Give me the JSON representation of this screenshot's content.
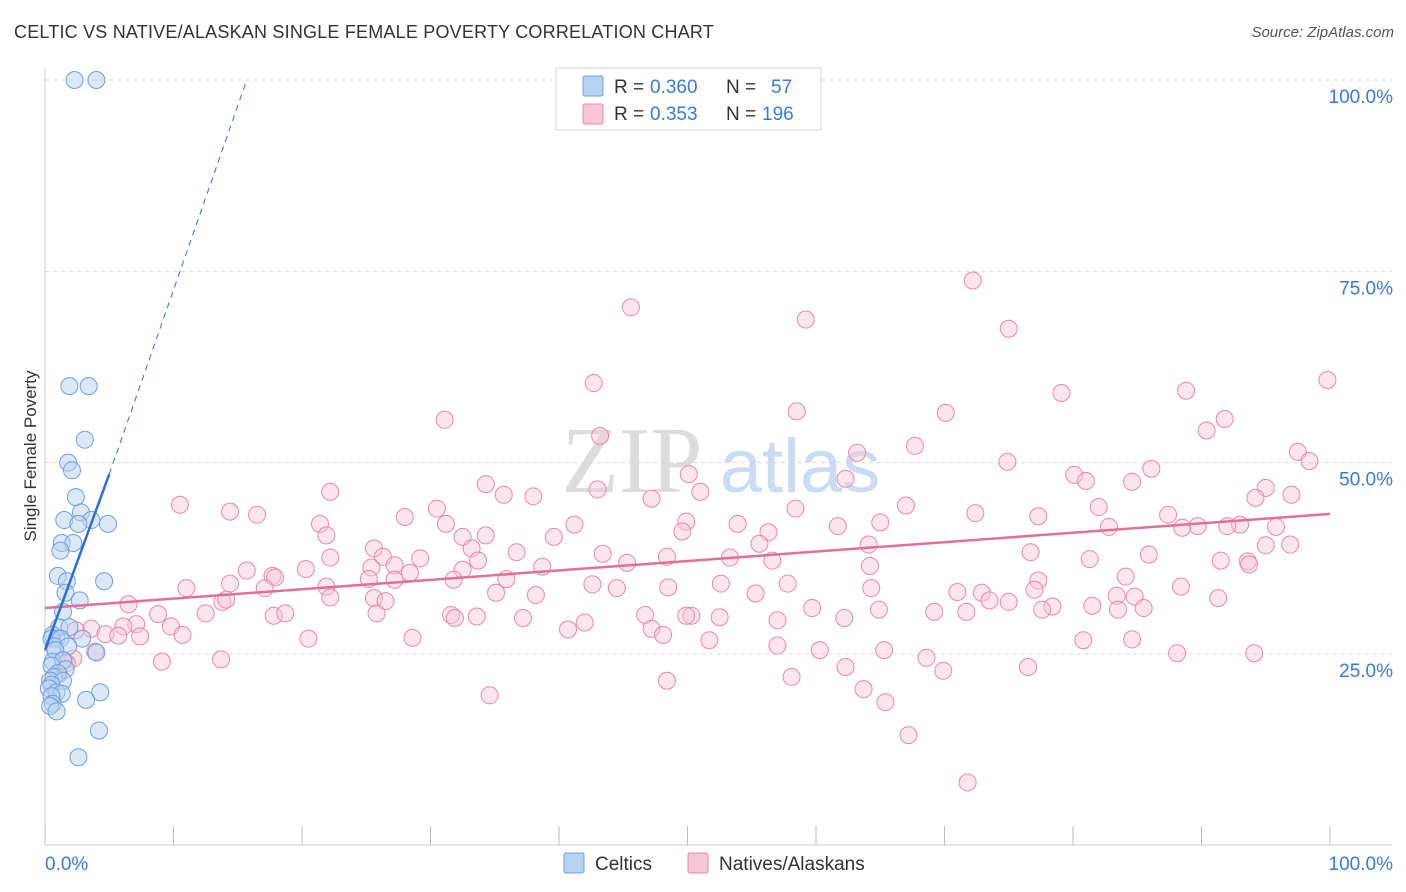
{
  "title": "CELTIC VS NATIVE/ALASKAN SINGLE FEMALE POVERTY CORRELATION CHART",
  "source": "Source: ZipAtlas.com",
  "watermark": {
    "zip": "ZIP",
    "atlas": "atlas"
  },
  "legend": {
    "rows": [
      {
        "r_label": "R =",
        "r_value": "0.360",
        "n_label": "N =",
        "n_value": "57",
        "color": "#a8c8f0"
      },
      {
        "r_label": "R =",
        "r_value": "0.353",
        "n_label": "N =",
        "n_value": "196",
        "color": "#f6b8cc"
      }
    ]
  },
  "bottom_legend": [
    "Celtics",
    "Natives/Alaskans"
  ],
  "colors": {
    "blue_fill": "#b8d2f2",
    "blue_stroke": "#6fa0dc",
    "blue_line": "#2f6fd4",
    "pink_fill": "#f8c6d6",
    "pink_stroke": "#e88aa8",
    "pink_line": "#e0709a",
    "value_text": "#3a7bd5",
    "grid": "#d8d8d8"
  },
  "chart_data": {
    "type": "scatter",
    "title": "CELTIC VS NATIVE/ALASKAN SINGLE FEMALE POVERTY CORRELATION CHART",
    "ylabel": "Single Female Poverty",
    "xlabel": "",
    "xlim": [
      0,
      100
    ],
    "ylim": [
      0,
      102
    ],
    "x_tick_labels": [
      "0.0%",
      "100.0%"
    ],
    "y_tick_labels": [
      {
        "value": 25,
        "label": "25.0%"
      },
      {
        "value": 50,
        "label": "50.0%"
      },
      {
        "value": 75,
        "label": "75.0%"
      },
      {
        "value": 100,
        "label": "100.0%"
      }
    ],
    "series": [
      {
        "name": "Celtics",
        "r": 0.36,
        "n": 57,
        "trend": {
          "x0": 0,
          "y0": 25.5,
          "x1": 5,
          "y1": 48.5,
          "dash_to_x": 15.7,
          "dash_to_y": 100
        },
        "points": [
          [
            2.3,
            100
          ],
          [
            4.0,
            100
          ],
          [
            1.9,
            60
          ],
          [
            3.4,
            60
          ],
          [
            3.1,
            53
          ],
          [
            1.8,
            50
          ],
          [
            2.1,
            49
          ],
          [
            2.4,
            45.5
          ],
          [
            1.5,
            42.5
          ],
          [
            2.8,
            43.5
          ],
          [
            3.6,
            42.5
          ],
          [
            2.6,
            42
          ],
          [
            4.9,
            42
          ],
          [
            1.3,
            39.5
          ],
          [
            2.2,
            39.5
          ],
          [
            1.2,
            38.5
          ],
          [
            1.0,
            35.2
          ],
          [
            1.7,
            34.5
          ],
          [
            4.6,
            34.5
          ],
          [
            1.6,
            33
          ],
          [
            2.7,
            32
          ],
          [
            1.4,
            30.5
          ],
          [
            1.1,
            28.5
          ],
          [
            1.9,
            28.5
          ],
          [
            0.6,
            27.5
          ],
          [
            0.9,
            27
          ],
          [
            0.5,
            27
          ],
          [
            1.2,
            27
          ],
          [
            2.9,
            27
          ],
          [
            0.7,
            26
          ],
          [
            1.8,
            26
          ],
          [
            0.8,
            25.5
          ],
          [
            4.0,
            25.2
          ],
          [
            0.6,
            24
          ],
          [
            1.4,
            24.2
          ],
          [
            0.5,
            23.5
          ],
          [
            1.6,
            23
          ],
          [
            1.0,
            22.5
          ],
          [
            0.7,
            22
          ],
          [
            0.4,
            21.5
          ],
          [
            1.4,
            21.5
          ],
          [
            0.5,
            21
          ],
          [
            0.3,
            20.5
          ],
          [
            0.9,
            20
          ],
          [
            4.3,
            20
          ],
          [
            1.3,
            19.8
          ],
          [
            0.5,
            19.5
          ],
          [
            3.2,
            19
          ],
          [
            0.6,
            18.5
          ],
          [
            0.4,
            18.2
          ],
          [
            0.9,
            17.5
          ],
          [
            4.2,
            15
          ],
          [
            2.6,
            11.5
          ]
        ]
      },
      {
        "name": "Natives/Alaskans",
        "r": 0.353,
        "n": 196,
        "trend": {
          "x0": 0,
          "y0": 31,
          "x1": 100,
          "y1": 43.3
        },
        "points": [
          [
            72.2,
            73.8
          ],
          [
            45.6,
            70.3
          ],
          [
            59.2,
            68.7
          ],
          [
            75.0,
            67.5
          ],
          [
            42.7,
            60.4
          ],
          [
            99.8,
            60.8
          ],
          [
            79.1,
            59.1
          ],
          [
            88.8,
            59.4
          ],
          [
            58.5,
            56.7
          ],
          [
            70.1,
            56.5
          ],
          [
            31.1,
            55.6
          ],
          [
            91.8,
            55.7
          ],
          [
            43.2,
            53.5
          ],
          [
            90.4,
            54.2
          ],
          [
            67.7,
            52.2
          ],
          [
            63.2,
            51.3
          ],
          [
            97.5,
            51.4
          ],
          [
            74.9,
            50.1
          ],
          [
            98.4,
            50.2
          ],
          [
            86.1,
            49.2
          ],
          [
            80.1,
            48.4
          ],
          [
            50.1,
            48.5
          ],
          [
            62.3,
            47.9
          ],
          [
            81.0,
            47.6
          ],
          [
            84.6,
            47.5
          ],
          [
            34.3,
            47.2
          ],
          [
            95.0,
            46.7
          ],
          [
            22.2,
            46.2
          ],
          [
            51.0,
            46.2
          ],
          [
            35.7,
            45.8
          ],
          [
            38.0,
            45.6
          ],
          [
            43.0,
            46.5
          ],
          [
            47.2,
            45.3
          ],
          [
            97.0,
            45.8
          ],
          [
            94.2,
            45.4
          ],
          [
            10.5,
            44.5
          ],
          [
            14.4,
            43.6
          ],
          [
            16.5,
            43.2
          ],
          [
            30.5,
            44.0
          ],
          [
            58.4,
            44.0
          ],
          [
            67.0,
            44.4
          ],
          [
            72.4,
            43.4
          ],
          [
            82.0,
            44.2
          ],
          [
            87.4,
            43.2
          ],
          [
            77.3,
            43.0
          ],
          [
            28.0,
            42.9
          ],
          [
            31.2,
            42.0
          ],
          [
            49.9,
            42.3
          ],
          [
            53.9,
            42.0
          ],
          [
            21.4,
            42.0
          ],
          [
            41.2,
            41.9
          ],
          [
            61.7,
            41.7
          ],
          [
            65.0,
            42.2
          ],
          [
            82.8,
            41.6
          ],
          [
            93.0,
            41.9
          ],
          [
            95.8,
            41.6
          ],
          [
            89.7,
            41.7
          ],
          [
            49.6,
            41.0
          ],
          [
            56.3,
            40.9
          ],
          [
            88.5,
            41.5
          ],
          [
            92.0,
            41.7
          ],
          [
            32.5,
            40.3
          ],
          [
            34.3,
            40.5
          ],
          [
            39.6,
            40.3
          ],
          [
            21.9,
            40.5
          ],
          [
            55.6,
            39.4
          ],
          [
            64.1,
            39.3
          ],
          [
            95.0,
            39.2
          ],
          [
            96.9,
            39.3
          ],
          [
            33.2,
            38.8
          ],
          [
            25.6,
            38.8
          ],
          [
            36.7,
            38.3
          ],
          [
            48.4,
            37.7
          ],
          [
            26.3,
            37.7
          ],
          [
            43.4,
            38.1
          ],
          [
            53.3,
            37.6
          ],
          [
            76.7,
            38.3
          ],
          [
            85.9,
            38.0
          ],
          [
            29.2,
            37.5
          ],
          [
            33.7,
            37.2
          ],
          [
            22.2,
            37.6
          ],
          [
            38.7,
            36.4
          ],
          [
            45.3,
            36.9
          ],
          [
            56.6,
            37.2
          ],
          [
            64.2,
            36.5
          ],
          [
            81.3,
            37.4
          ],
          [
            91.5,
            37.2
          ],
          [
            93.6,
            37.1
          ],
          [
            93.7,
            36.7
          ],
          [
            25.4,
            36.3
          ],
          [
            27.2,
            36.6
          ],
          [
            20.3,
            36.1
          ],
          [
            32.5,
            36.0
          ],
          [
            28.4,
            35.6
          ],
          [
            15.7,
            35.9
          ],
          [
            17.7,
            35.2
          ],
          [
            17.9,
            35.0
          ],
          [
            25.2,
            34.8
          ],
          [
            27.2,
            34.7
          ],
          [
            31.8,
            34.7
          ],
          [
            35.9,
            34.8
          ],
          [
            42.6,
            34.1
          ],
          [
            52.6,
            34.2
          ],
          [
            57.8,
            34.2
          ],
          [
            77.3,
            34.6
          ],
          [
            84.1,
            35.1
          ],
          [
            14.4,
            34.2
          ],
          [
            21.9,
            33.8
          ],
          [
            17.1,
            33.6
          ],
          [
            44.5,
            33.6
          ],
          [
            48.5,
            33.7
          ],
          [
            64.3,
            33.6
          ],
          [
            72.9,
            33.0
          ],
          [
            11.0,
            33.6
          ],
          [
            35.1,
            33.0
          ],
          [
            38.2,
            32.7
          ],
          [
            55.3,
            32.9
          ],
          [
            83.4,
            32.6
          ],
          [
            22.2,
            32.4
          ],
          [
            25.6,
            32.3
          ],
          [
            71.0,
            33.1
          ],
          [
            91.3,
            32.3
          ],
          [
            13.8,
            31.8
          ],
          [
            14.1,
            32.1
          ],
          [
            26.5,
            31.9
          ],
          [
            73.5,
            32.0
          ],
          [
            77.0,
            33.4
          ],
          [
            84.8,
            32.5
          ],
          [
            59.7,
            31.0
          ],
          [
            64.9,
            30.8
          ],
          [
            75.0,
            31.8
          ],
          [
            78.4,
            31.2
          ],
          [
            83.5,
            30.8
          ],
          [
            88.4,
            33.8
          ],
          [
            6.5,
            31.5
          ],
          [
            8.8,
            30.2
          ],
          [
            17.8,
            30.0
          ],
          [
            31.6,
            30.1
          ],
          [
            33.6,
            29.9
          ],
          [
            37.2,
            29.7
          ],
          [
            46.7,
            30.1
          ],
          [
            50.3,
            30.0
          ],
          [
            52.5,
            29.8
          ],
          [
            57.0,
            29.4
          ],
          [
            62.2,
            29.7
          ],
          [
            69.2,
            30.5
          ],
          [
            71.7,
            30.5
          ],
          [
            77.6,
            30.8
          ],
          [
            81.5,
            31.3
          ],
          [
            85.5,
            31.0
          ],
          [
            25.8,
            30.3
          ],
          [
            31.9,
            29.7
          ],
          [
            12.5,
            30.3
          ],
          [
            18.7,
            30.3
          ],
          [
            42.0,
            29.1
          ],
          [
            49.9,
            30.0
          ],
          [
            7.1,
            28.9
          ],
          [
            9.8,
            28.6
          ],
          [
            6.1,
            28.6
          ],
          [
            3.6,
            28.3
          ],
          [
            2.4,
            28.1
          ],
          [
            4.7,
            27.6
          ],
          [
            5.7,
            27.4
          ],
          [
            7.4,
            27.3
          ],
          [
            10.7,
            27.5
          ],
          [
            20.5,
            27.0
          ],
          [
            28.6,
            27.1
          ],
          [
            40.7,
            28.2
          ],
          [
            47.2,
            28.3
          ],
          [
            48.1,
            27.5
          ],
          [
            51.7,
            26.8
          ],
          [
            57.0,
            26.1
          ],
          [
            60.3,
            25.5
          ],
          [
            65.3,
            25.5
          ],
          [
            68.6,
            24.5
          ],
          [
            80.8,
            26.8
          ],
          [
            84.6,
            26.9
          ],
          [
            88.1,
            25.1
          ],
          [
            94.1,
            25.1
          ],
          [
            3.9,
            25.3
          ],
          [
            2.2,
            24.4
          ],
          [
            1.5,
            24.1
          ],
          [
            9.1,
            24.0
          ],
          [
            13.7,
            24.3
          ],
          [
            34.6,
            19.6
          ],
          [
            48.4,
            21.5
          ],
          [
            58.1,
            22.0
          ],
          [
            62.3,
            23.3
          ],
          [
            69.9,
            22.8
          ],
          [
            76.5,
            23.3
          ],
          [
            63.7,
            20.4
          ],
          [
            1.1,
            22.4
          ],
          [
            1.7,
            23.8
          ],
          [
            65.4,
            18.7
          ],
          [
            67.2,
            14.4
          ],
          [
            71.8,
            8.2
          ]
        ]
      }
    ]
  }
}
